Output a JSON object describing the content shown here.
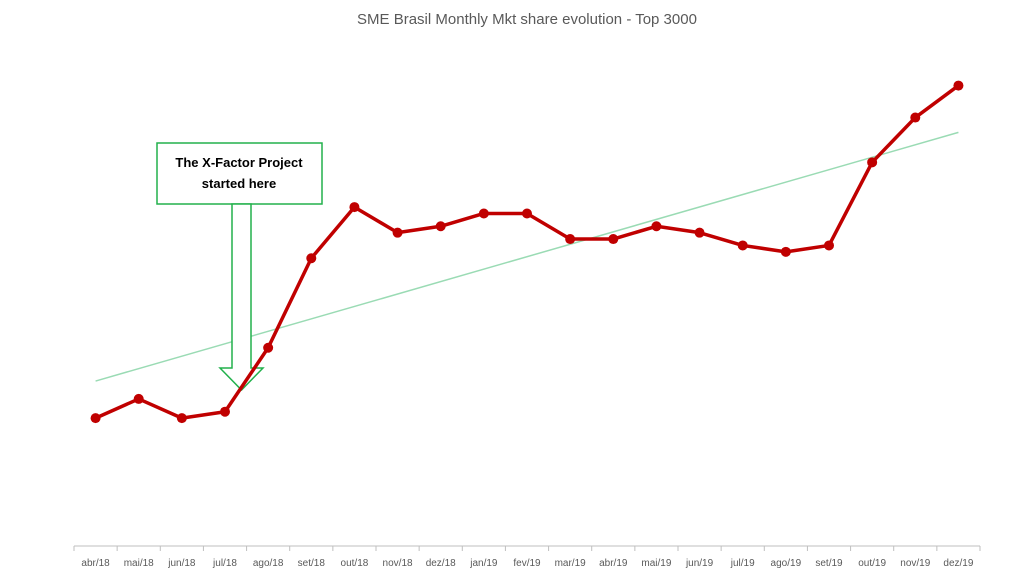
{
  "chart_data": {
    "type": "line",
    "title": "SME Brasil Monthly Mkt share evolution - Top 3000",
    "xlabel": "",
    "ylabel": "",
    "categories": [
      "abr/18",
      "mai/18",
      "jun/18",
      "jul/18",
      "ago/18",
      "set/18",
      "out/18",
      "nov/18",
      "dez/18",
      "jan/19",
      "fev/19",
      "mar/19",
      "abr/19",
      "mai/19",
      "jun/19",
      "jul/19",
      "ago/19",
      "set/19",
      "out/19",
      "nov/19",
      "dez/19"
    ],
    "series": [
      {
        "values": [
          1.0,
          1.3,
          1.0,
          1.1,
          2.1,
          3.5,
          4.3,
          3.9,
          4.0,
          4.2,
          4.2,
          3.8,
          3.8,
          4.0,
          3.9,
          3.7,
          3.6,
          3.7,
          5.0,
          5.7,
          6.2
        ],
        "color": "#C00000",
        "marker": "circle"
      },
      {
        "type": "linear-trendline",
        "color": "#9ADBB4"
      }
    ],
    "ylim": [
      -1.0,
      6.6
    ],
    "grid": false,
    "legend": "none",
    "annotations": [
      {
        "text_lines": [
          "The X-Factor Project",
          "started here"
        ],
        "points_to": "ago/18",
        "border_color": "#22B14C",
        "style": "callout box with down arrow"
      }
    ],
    "colors": {
      "axis": "#BFBFBF",
      "text": "#595959"
    }
  }
}
